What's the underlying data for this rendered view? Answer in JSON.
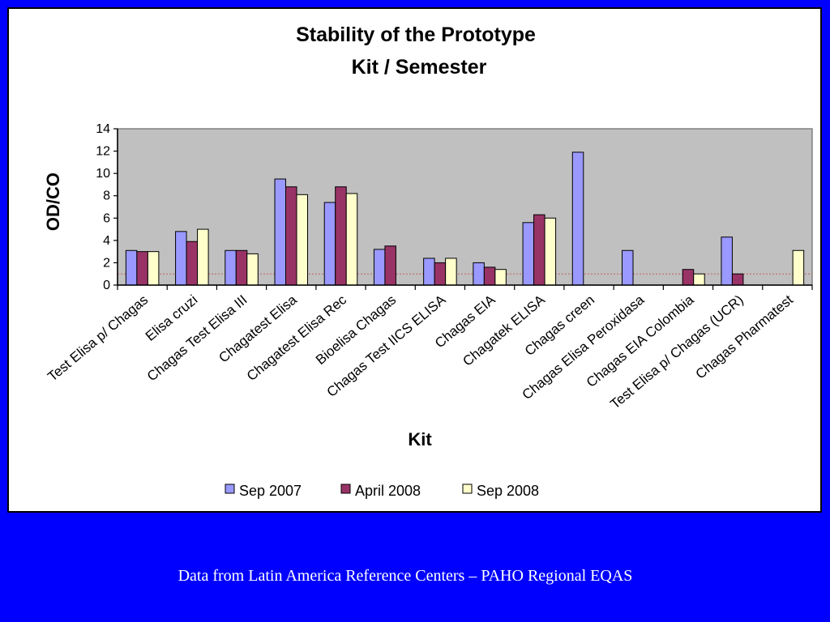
{
  "footer": {
    "caption": "Data from Latin America Reference Centers – PAHO Regional EQAS"
  },
  "colors": {
    "slide_background": "#0000ff",
    "plot_background": "#c0c0c0",
    "cutoff_line": "#c06060"
  },
  "chart_data": {
    "type": "bar",
    "title": [
      "Stability of the Prototype",
      "Kit / Semester"
    ],
    "xlabel": "Kit",
    "ylabel": "OD/CO",
    "ylim": [
      0,
      14
    ],
    "yticks": [
      0,
      2,
      4,
      6,
      8,
      10,
      12,
      14
    ],
    "grid": false,
    "legend_position": "bottom",
    "reference_line": 1,
    "categories": [
      "Test Elisa p/ Chagas",
      "Elisa cruzi",
      "Chagas Test Elisa III",
      "Chagatest Elisa",
      "Chagatest Elisa Rec",
      "Bioelisa Chagas",
      "Chagas Test IICS ELISA",
      "Chagas EIA",
      "Chagatek ELISA",
      "Chagas creen",
      "Chagas Elisa Peroxidasa",
      "Chagas EIA Colombia",
      "Test Elisa p/ Chagas (UCR)",
      "Chagas Pharmatest"
    ],
    "series": [
      {
        "name": "Sep 2007",
        "color": "#9999ff",
        "values": [
          3.1,
          4.8,
          3.1,
          9.5,
          7.4,
          3.2,
          2.4,
          2.0,
          5.6,
          11.9,
          3.1,
          null,
          4.3,
          null
        ]
      },
      {
        "name": "April 2008",
        "color": "#993366",
        "values": [
          3.0,
          3.9,
          3.1,
          8.8,
          8.8,
          3.5,
          2.0,
          1.6,
          6.3,
          null,
          null,
          1.4,
          1.0,
          null
        ]
      },
      {
        "name": "Sep 2008",
        "color": "#ffffcc",
        "values": [
          3.0,
          5.0,
          2.8,
          8.1,
          8.2,
          null,
          2.4,
          1.4,
          6.0,
          null,
          null,
          1.0,
          null,
          3.1
        ]
      }
    ]
  }
}
